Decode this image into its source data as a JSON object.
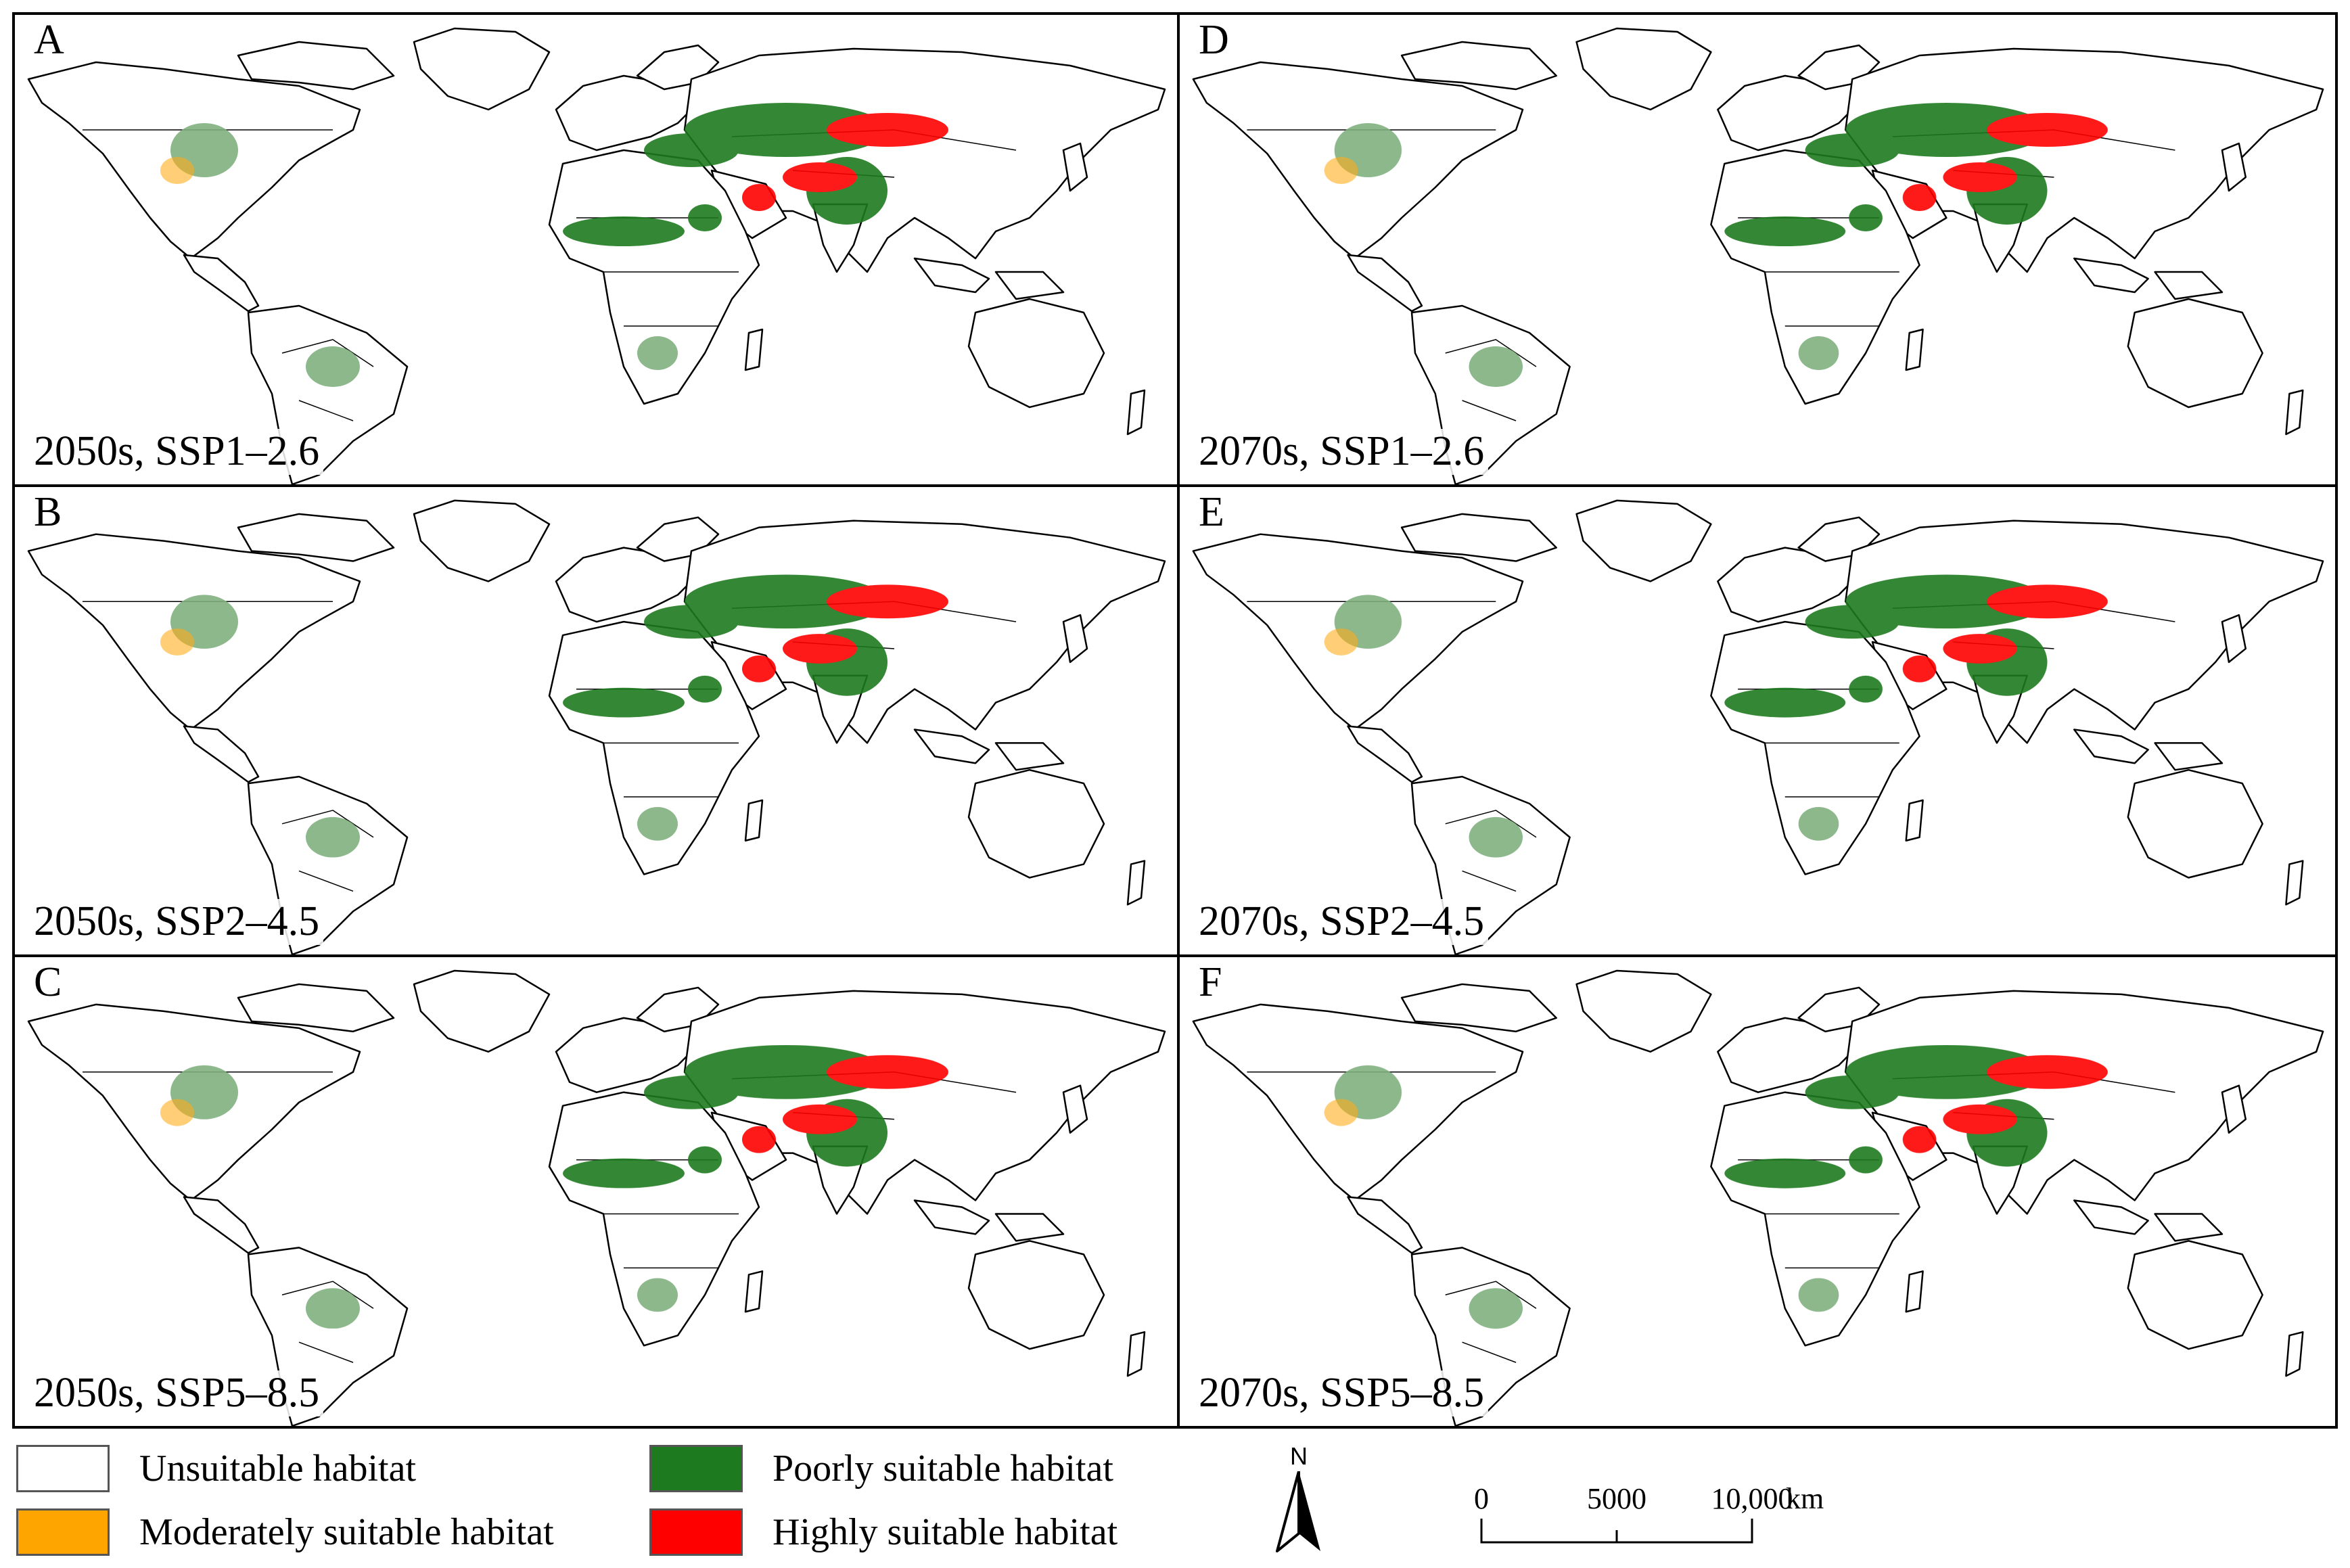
{
  "figure": {
    "panels": [
      {
        "letter": "A",
        "caption": "2050s, SSP1–2.6"
      },
      {
        "letter": "D",
        "caption": "2070s, SSP1–2.6"
      },
      {
        "letter": "B",
        "caption": "2050s, SSP2–4.5"
      },
      {
        "letter": "E",
        "caption": "2070s, SSP2–4.5"
      },
      {
        "letter": "C",
        "caption": "2050s, SSP5–8.5"
      },
      {
        "letter": "F",
        "caption": "2070s, SSP5–8.5"
      }
    ]
  },
  "legend": {
    "items": [
      {
        "label": "Unsuitable habitat",
        "color": "#ffffff"
      },
      {
        "label": "Moderately suitable habitat",
        "color": "#ffa500"
      },
      {
        "label": "Poorly suitable habitat",
        "color": "#1e7a1e"
      },
      {
        "label": "Highly suitable habitat",
        "color": "#ff0000"
      }
    ]
  },
  "north_arrow": {
    "label": "N"
  },
  "scale_bar": {
    "ticks": [
      "0",
      "5000",
      "10,000"
    ],
    "unit": "km"
  }
}
